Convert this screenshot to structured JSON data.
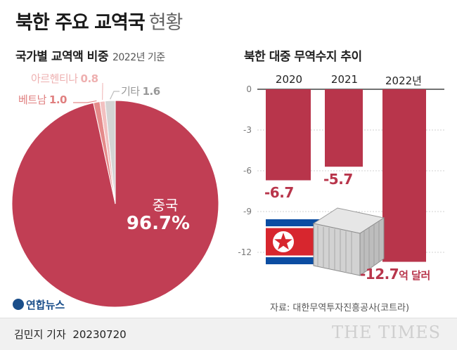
{
  "title": {
    "main": "북한 주요 교역국",
    "sub": "현황"
  },
  "pie_section": {
    "title": "국가별 교역액 비중",
    "note": "2022년 기준"
  },
  "bar_section": {
    "title": "북한 대중 무역수지 추이"
  },
  "colors": {
    "accent": "#b8354b",
    "pie_china": "#c13e54",
    "pie_vietnam": "#e58a8a",
    "pie_argentina": "#f2c0c0",
    "pie_other": "#d4d4d4"
  },
  "chart_data": [
    {
      "type": "pie",
      "slices": [
        {
          "name": "중국",
          "value": 96.7,
          "display": "96.7%"
        },
        {
          "name": "베트남",
          "value": 1.0,
          "display": "1.0"
        },
        {
          "name": "아르헨티나",
          "value": 0.8,
          "display": "0.8"
        },
        {
          "name": "기타",
          "value": 1.6,
          "display": "1.6"
        }
      ]
    },
    {
      "type": "bar",
      "categories": [
        "2020",
        "2021",
        "2022년"
      ],
      "values": [
        -6.7,
        -5.7,
        -12.7
      ],
      "value_labels": [
        "-6.7",
        "-5.7",
        "-12.7"
      ],
      "unit_label": "억 달러",
      "yticks": [
        "0",
        "-3",
        "-6",
        "-9",
        "-12"
      ],
      "ylim": [
        -13.5,
        0
      ]
    }
  ],
  "source": "자료: 대한무역투자진흥공사(코트라)",
  "logo": "연합뉴스",
  "byline": {
    "author": "김민지 기자",
    "date": "20230720"
  },
  "watermark": "THE TIMES"
}
